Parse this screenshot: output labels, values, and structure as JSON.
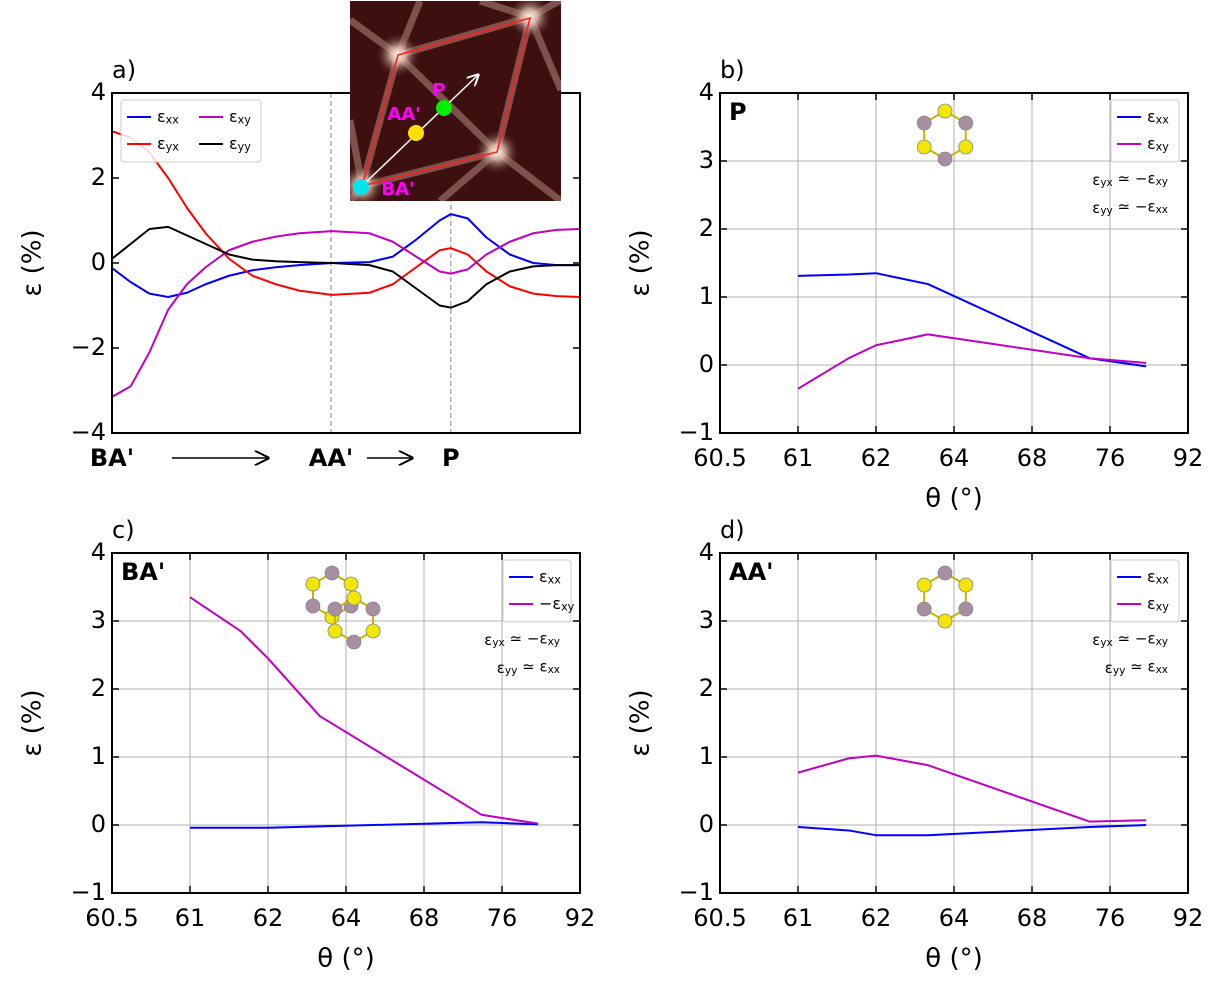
{
  "chart_data": [
    {
      "type": "line",
      "panel_label": "a)",
      "ylabel": "ε (%)",
      "x": [
        0,
        0.04,
        0.08,
        0.12,
        0.16,
        0.2,
        0.25,
        0.3,
        0.35,
        0.4,
        0.47,
        0.55,
        0.6,
        0.65,
        0.7,
        0.724,
        0.76,
        0.8,
        0.85,
        0.9,
        0.95,
        1
      ],
      "xlim": [
        0,
        1
      ],
      "xticks": [
        {
          "value": 0,
          "label": "BA'"
        },
        {
          "value": 0.468,
          "label": "AA'"
        },
        {
          "value": 0.724,
          "label": "P"
        }
      ],
      "ylim": [
        -4,
        4
      ],
      "yticks": [
        {
          "value": -4,
          "label": "−4"
        },
        {
          "value": -2,
          "label": "−2"
        },
        0,
        2,
        4
      ],
      "grid": "x-dashed",
      "legend": "upper left",
      "legend_columns": 2,
      "series": [
        {
          "name": "εxx",
          "color": "#0000ff",
          "values": [
            -0.12,
            -0.45,
            -0.72,
            -0.8,
            -0.7,
            -0.5,
            -0.3,
            -0.17,
            -0.1,
            -0.05,
            0,
            0.02,
            0.15,
            0.55,
            1.0,
            1.15,
            1.05,
            0.6,
            0.2,
            0.0,
            -0.05,
            -0.05
          ]
        },
        {
          "name": "εyx",
          "color": "#ff0000",
          "values": [
            3.1,
            2.95,
            2.6,
            2.0,
            1.3,
            0.7,
            0.1,
            -0.3,
            -0.5,
            -0.65,
            -0.75,
            -0.7,
            -0.5,
            -0.1,
            0.3,
            0.35,
            0.2,
            -0.2,
            -0.55,
            -0.72,
            -0.78,
            -0.8
          ]
        },
        {
          "name": "εxy",
          "color": "#bf00bf",
          "values": [
            -3.15,
            -2.9,
            -2.1,
            -1.1,
            -0.5,
            -0.1,
            0.3,
            0.5,
            0.62,
            0.7,
            0.75,
            0.7,
            0.5,
            0.15,
            -0.2,
            -0.25,
            -0.15,
            0.2,
            0.5,
            0.7,
            0.78,
            0.8
          ]
        },
        {
          "name": "εyy",
          "color": "#000000",
          "values": [
            0.1,
            0.45,
            0.8,
            0.85,
            0.65,
            0.45,
            0.2,
            0.08,
            0.04,
            0.02,
            0,
            -0.05,
            -0.2,
            -0.6,
            -1.0,
            -1.05,
            -0.9,
            -0.5,
            -0.2,
            -0.08,
            -0.05,
            -0.05
          ]
        }
      ],
      "inset_labels": [
        "P",
        "AA'",
        "BA'"
      ]
    },
    {
      "type": "line",
      "panel_label": "b)",
      "label": "P",
      "ylabel": "ε (%)",
      "xlabel": "θ (°)",
      "x": [
        61,
        61.65,
        62,
        63.33,
        73.9,
        83.4
      ],
      "xlim": [
        60.5,
        92
      ],
      "xscale": "even-ticks",
      "xticks": [
        60.5,
        61,
        62,
        64,
        68,
        76,
        92
      ],
      "ylim": [
        -1,
        4
      ],
      "yticks": [
        {
          "value": -1,
          "label": "−1"
        },
        0,
        1,
        2,
        3,
        4
      ],
      "grid": true,
      "legend": "upper right",
      "series": [
        {
          "name": "εxx",
          "color": "#0000ff",
          "values": [
            1.31,
            1.33,
            1.35,
            1.19,
            0.1,
            -0.02
          ]
        },
        {
          "name": "εxy",
          "color": "#bf00bf",
          "values": [
            -0.35,
            0.1,
            0.29,
            0.45,
            0.1,
            0.03
          ]
        }
      ],
      "annotations": [
        "εyx ≃ −εxy",
        "εyy ≃ −εxx"
      ]
    },
    {
      "type": "line",
      "panel_label": "c)",
      "label": "BA'",
      "ylabel": "ε (%)",
      "xlabel": "θ (°)",
      "x": [
        61,
        61.65,
        62,
        63.33,
        73.9,
        83.4
      ],
      "xlim": [
        60.5,
        92
      ],
      "xscale": "even-ticks",
      "xticks": [
        60.5,
        61,
        62,
        64,
        68,
        76,
        92
      ],
      "ylim": [
        -1,
        4
      ],
      "yticks": [
        {
          "value": -1,
          "label": "−1"
        },
        0,
        1,
        2,
        3,
        4
      ],
      "grid": true,
      "legend": "upper right",
      "series": [
        {
          "name": "εxx",
          "color": "#0000ff",
          "values": [
            -0.04,
            -0.04,
            -0.04,
            -0.02,
            0.04,
            0.01
          ]
        },
        {
          "name": "−εxy",
          "color": "#bf00bf",
          "values": [
            3.35,
            2.85,
            2.45,
            1.6,
            0.15,
            0.02
          ]
        }
      ],
      "annotations": [
        "εyx ≃ −εxy",
        "εyy ≃ εxx"
      ]
    },
    {
      "type": "line",
      "panel_label": "d)",
      "label": "AA'",
      "ylabel": "ε (%)",
      "xlabel": "θ (°)",
      "x": [
        61,
        61.65,
        62,
        63.33,
        73.9,
        83.4
      ],
      "xlim": [
        60.5,
        92
      ],
      "xscale": "even-ticks",
      "xticks": [
        60.5,
        61,
        62,
        64,
        68,
        76,
        92
      ],
      "ylim": [
        -1,
        4
      ],
      "yticks": [
        {
          "value": -1,
          "label": "−1"
        },
        0,
        1,
        2,
        3,
        4
      ],
      "grid": true,
      "legend": "upper right",
      "series": [
        {
          "name": "εxx",
          "color": "#0000ff",
          "values": [
            -0.03,
            -0.08,
            -0.15,
            -0.15,
            -0.03,
            0.0
          ]
        },
        {
          "name": "εxy",
          "color": "#bf00bf",
          "values": [
            0.77,
            0.98,
            1.02,
            0.88,
            0.05,
            0.07
          ]
        }
      ],
      "annotations": [
        "εyx ≃ −εxy",
        "εyy ≃ εxx"
      ]
    }
  ]
}
